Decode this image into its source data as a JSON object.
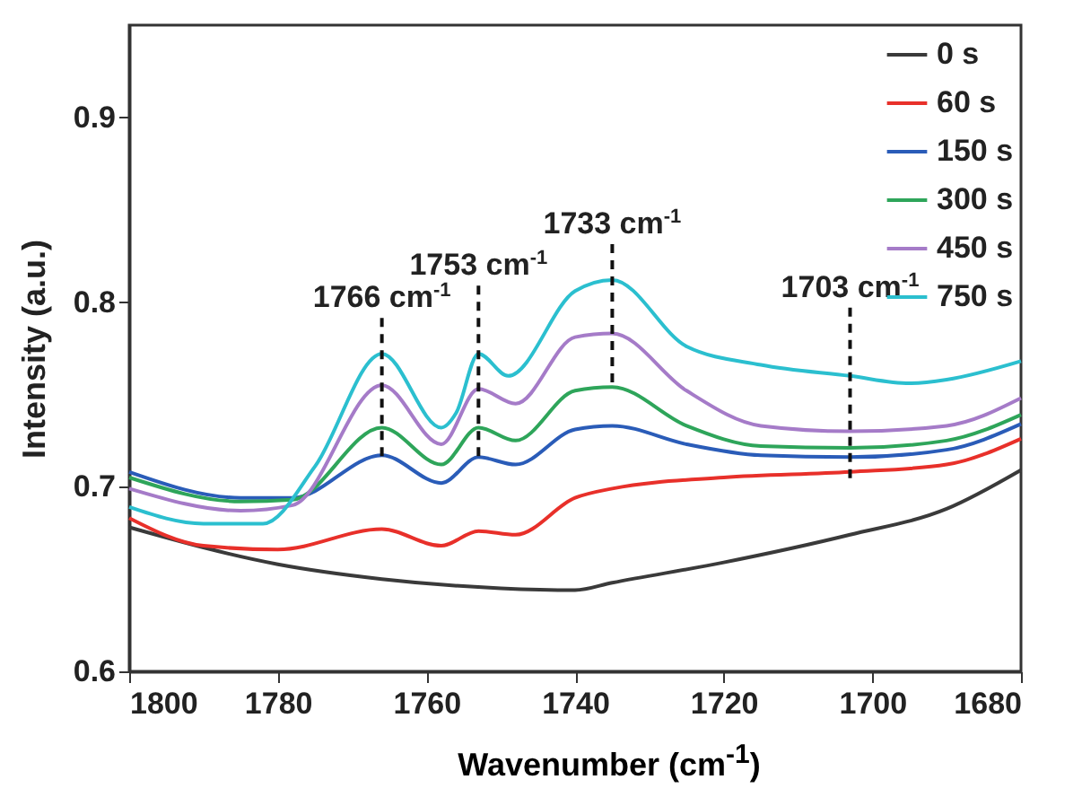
{
  "chart_data": {
    "type": "line",
    "xlabel": "Wavenumber (cm$^{-1}$)",
    "ylabel": "Intensity (a.u.)",
    "xlim": [
      1800,
      1680
    ],
    "xticks": [
      1800,
      1780,
      1760,
      1740,
      1720,
      1700,
      1680
    ],
    "ylim": [
      0.6,
      0.95
    ],
    "yticks": [
      0.6,
      0.7,
      0.8,
      0.9
    ],
    "grid": false,
    "legend": "top right",
    "series": [
      {
        "name": "0 s",
        "color": "#3a3a3a",
        "x": [
          1800,
          1780,
          1766,
          1750,
          1740,
          1735,
          1720,
          1703,
          1690,
          1680
        ],
        "values": [
          0.678,
          0.658,
          0.65,
          0.645,
          0.644,
          0.648,
          0.659,
          0.674,
          0.688,
          0.709
        ]
      },
      {
        "name": "60 s",
        "color": "#e8302a",
        "x": [
          1800,
          1790,
          1780,
          1766,
          1758,
          1753,
          1748,
          1740,
          1735,
          1720,
          1703,
          1690,
          1680
        ],
        "values": [
          0.683,
          0.668,
          0.666,
          0.677,
          0.668,
          0.676,
          0.674,
          0.694,
          0.699,
          0.705,
          0.708,
          0.712,
          0.726
        ]
      },
      {
        "name": "150 s",
        "color": "#2a5cb8",
        "x": [
          1800,
          1785,
          1778,
          1766,
          1758,
          1753,
          1748,
          1740,
          1735,
          1725,
          1715,
          1703,
          1690,
          1680
        ],
        "values": [
          0.708,
          0.694,
          0.694,
          0.717,
          0.702,
          0.716,
          0.712,
          0.731,
          0.733,
          0.723,
          0.717,
          0.716,
          0.72,
          0.734
        ]
      },
      {
        "name": "300 s",
        "color": "#2ea55a",
        "x": [
          1800,
          1785,
          1778,
          1766,
          1758,
          1753,
          1748,
          1740,
          1735,
          1725,
          1715,
          1703,
          1690,
          1680
        ],
        "values": [
          0.705,
          0.692,
          0.693,
          0.732,
          0.712,
          0.732,
          0.725,
          0.752,
          0.754,
          0.733,
          0.722,
          0.721,
          0.725,
          0.739
        ]
      },
      {
        "name": "450 s",
        "color": "#a57bc8",
        "x": [
          1800,
          1785,
          1778,
          1766,
          1758,
          1753,
          1748,
          1740,
          1735,
          1725,
          1715,
          1703,
          1690,
          1680
        ],
        "values": [
          0.699,
          0.687,
          0.69,
          0.755,
          0.723,
          0.753,
          0.745,
          0.781,
          0.783,
          0.752,
          0.733,
          0.73,
          0.733,
          0.748
        ]
      },
      {
        "name": "750 s",
        "color": "#2bbfcf",
        "x": [
          1800,
          1790,
          1782,
          1775,
          1766,
          1758,
          1756,
          1753,
          1749,
          1740,
          1735,
          1725,
          1715,
          1703,
          1695,
          1690,
          1680
        ],
        "values": [
          0.689,
          0.68,
          0.68,
          0.711,
          0.772,
          0.732,
          0.74,
          0.772,
          0.76,
          0.806,
          0.812,
          0.776,
          0.766,
          0.76,
          0.756,
          0.758,
          0.768
        ]
      }
    ],
    "annotations": [
      {
        "text": "1766 cm$^{-1}$",
        "x": 1766,
        "y": 0.772
      },
      {
        "text": "1753 cm$^{-1}$",
        "x": 1753,
        "y": 0.772
      },
      {
        "text": "1733 cm$^{-1}$",
        "x": 1735,
        "y": 0.812
      },
      {
        "text": "1703 cm$^{-1}$",
        "x": 1703,
        "y": 0.76
      }
    ]
  }
}
